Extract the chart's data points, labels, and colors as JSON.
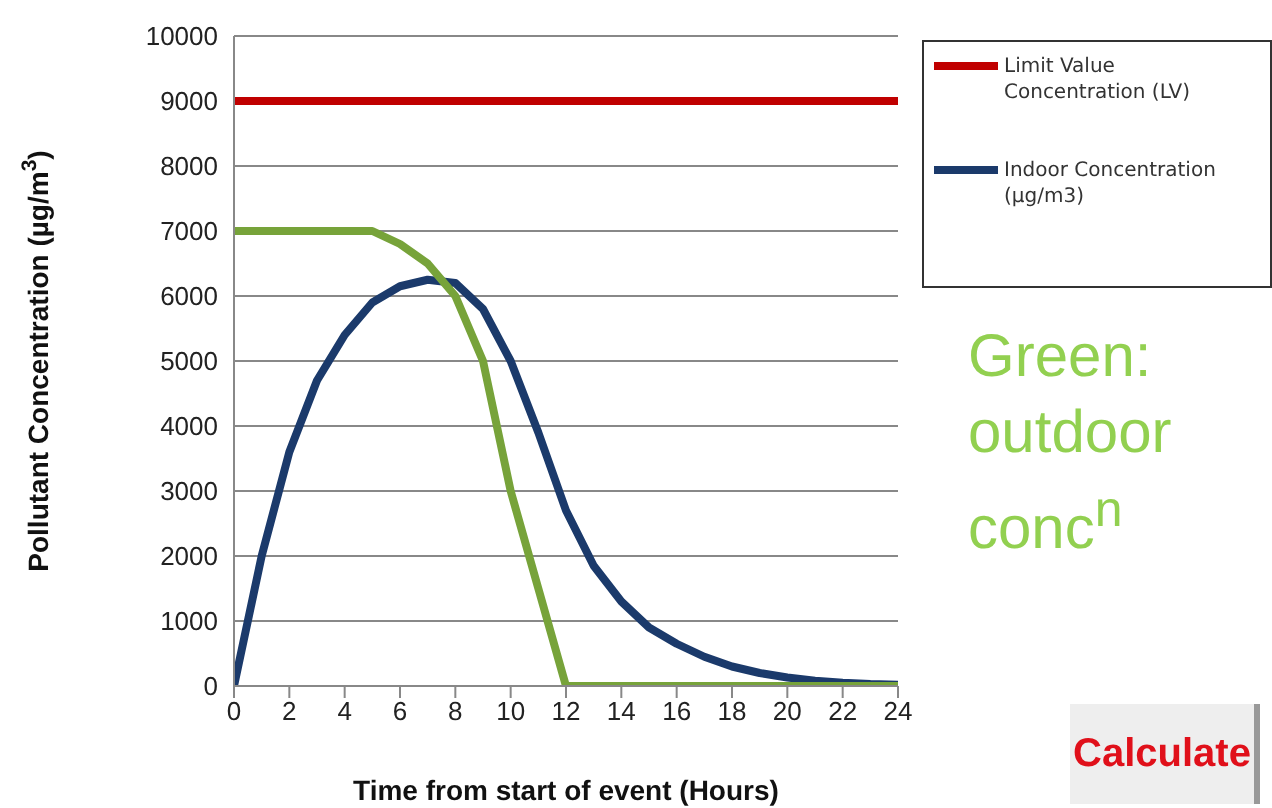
{
  "chart_data": {
    "type": "line",
    "xlabel": "Time from start of event (Hours)",
    "ylabel": "Pollutant Concentration (µg/m$^{3}$)",
    "x": [
      0,
      1,
      2,
      3,
      4,
      5,
      6,
      7,
      8,
      9,
      10,
      11,
      12,
      13,
      14,
      15,
      16,
      17,
      18,
      19,
      20,
      21,
      22,
      23,
      24
    ],
    "series": [
      {
        "name": "Limit Value Concentration (LV)",
        "color": "#c00000",
        "values": [
          9000,
          9000,
          9000,
          9000,
          9000,
          9000,
          9000,
          9000,
          9000,
          9000,
          9000,
          9000,
          9000,
          9000,
          9000,
          9000,
          9000,
          9000,
          9000,
          9000,
          9000,
          9000,
          9000,
          9000,
          9000
        ]
      },
      {
        "name": "Indoor Concentration (µg/m3)",
        "color": "#1b3a6b",
        "values": [
          0,
          2000,
          3600,
          4700,
          5400,
          5900,
          6150,
          6250,
          6200,
          5800,
          5000,
          3900,
          2700,
          1850,
          1300,
          900,
          650,
          450,
          300,
          200,
          130,
          80,
          50,
          30,
          20
        ]
      },
      {
        "color": "#77a33a",
        "values": [
          7000,
          7000,
          7000,
          7000,
          7000,
          7000,
          6800,
          6500,
          6000,
          5000,
          3000,
          1500,
          0,
          0,
          0,
          0,
          0,
          0,
          0,
          0,
          0,
          0,
          0,
          0,
          0
        ]
      }
    ],
    "xlim": [
      0,
      24
    ],
    "xticks": [
      0,
      2,
      4,
      6,
      8,
      10,
      12,
      14,
      16,
      18,
      20,
      22,
      24
    ],
    "ylim": [
      0,
      10000
    ],
    "yticks": [
      0,
      1000,
      2000,
      3000,
      4000,
      5000,
      6000,
      7000,
      8000,
      9000,
      10000
    ],
    "grid": "y",
    "legend": "top right",
    "marker": "none",
    "line_style": "solid",
    "annotations": [
      "Green: outdoor conc$^{n}$",
      "Calculate"
    ]
  }
}
